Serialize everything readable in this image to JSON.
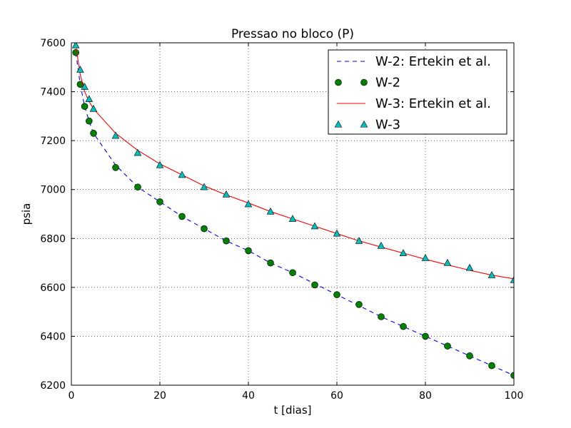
{
  "chart_data": {
    "type": "line",
    "title": "Pressao no bloco (P)",
    "xlabel": "t [dias]",
    "ylabel": "psia",
    "xlim": [
      0,
      100
    ],
    "ylim": [
      6200,
      7600
    ],
    "xticks": [
      0,
      20,
      40,
      60,
      80,
      100
    ],
    "yticks": [
      6200,
      6400,
      6600,
      6800,
      7000,
      7200,
      7400,
      7600
    ],
    "grid": true,
    "legend_position": "top-right",
    "series": [
      {
        "name": "W-2: Ertekin et al.",
        "kind": "line",
        "style": "dashed",
        "color": "#0000ff",
        "x": [
          1,
          2,
          3,
          4,
          5,
          10,
          15,
          20,
          25,
          30,
          35,
          40,
          45,
          50,
          55,
          60,
          65,
          70,
          75,
          80,
          85,
          90,
          95,
          100
        ],
        "y": [
          7560,
          7430,
          7340,
          7280,
          7230,
          7100,
          7010,
          6950,
          6890,
          6840,
          6790,
          6750,
          6700,
          6660,
          6615,
          6570,
          6525,
          6480,
          6440,
          6400,
          6360,
          6320,
          6280,
          6240
        ]
      },
      {
        "name": "W-2",
        "kind": "marker",
        "marker": "circle",
        "color": "#008000",
        "x": [
          1,
          2,
          3,
          4,
          5,
          10,
          15,
          20,
          25,
          30,
          35,
          40,
          45,
          50,
          55,
          60,
          65,
          70,
          75,
          80,
          85,
          90,
          95,
          100
        ],
        "y": [
          7560,
          7430,
          7340,
          7280,
          7230,
          7090,
          7010,
          6950,
          6890,
          6840,
          6790,
          6750,
          6700,
          6660,
          6610,
          6570,
          6530,
          6480,
          6440,
          6400,
          6360,
          6320,
          6280,
          6240
        ]
      },
      {
        "name": "W-3: Ertekin et al.",
        "kind": "line",
        "style": "solid",
        "color": "#ff0000",
        "x": [
          1,
          2,
          3,
          4,
          5,
          10,
          15,
          20,
          25,
          30,
          35,
          40,
          45,
          50,
          55,
          60,
          65,
          70,
          75,
          80,
          85,
          90,
          95,
          100
        ],
        "y": [
          7590,
          7470,
          7400,
          7360,
          7330,
          7230,
          7160,
          7105,
          7060,
          7015,
          6978,
          6945,
          6910,
          6880,
          6850,
          6820,
          6790,
          6765,
          6740,
          6715,
          6692,
          6670,
          6650,
          6635
        ]
      },
      {
        "name": "W-3",
        "kind": "marker",
        "marker": "triangle",
        "color": "#00bfbf",
        "x": [
          1,
          2,
          3,
          4,
          5,
          10,
          15,
          20,
          25,
          30,
          35,
          40,
          45,
          50,
          55,
          60,
          65,
          70,
          75,
          80,
          85,
          90,
          95,
          100
        ],
        "y": [
          7590,
          7490,
          7420,
          7370,
          7330,
          7220,
          7150,
          7100,
          7060,
          7010,
          6980,
          6940,
          6910,
          6880,
          6850,
          6820,
          6790,
          6770,
          6740,
          6720,
          6700,
          6680,
          6650,
          6630
        ]
      }
    ]
  }
}
